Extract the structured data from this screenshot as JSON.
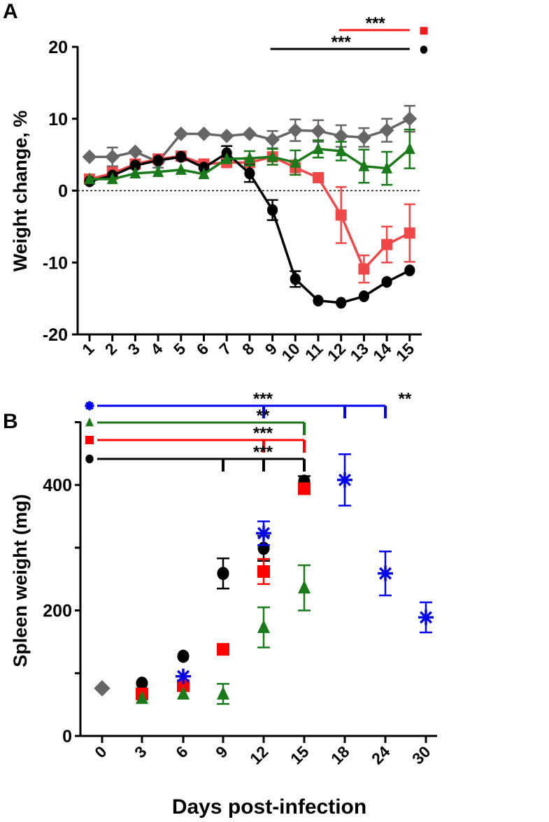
{
  "chart_data": [
    {
      "panel": "A",
      "type": "line",
      "ylabel": "Weight change, %",
      "xlabel": "",
      "categories": [
        "1",
        "2",
        "3",
        "4",
        "5",
        "6",
        "7",
        "8",
        "9",
        "10",
        "11",
        "12",
        "13",
        "14",
        "15"
      ],
      "ylim": [
        -20,
        20
      ],
      "yticks": [
        "20",
        "10",
        "0",
        "-10",
        "-20"
      ],
      "yticks_values": [
        20,
        10,
        0,
        -10,
        -20
      ],
      "reference_line": 0,
      "series": [
        {
          "name": "gray-diamond",
          "marker": "diamond",
          "color": "#666666",
          "values": [
            4.7,
            4.7,
            5.4,
            4.0,
            7.9,
            7.9,
            7.6,
            7.9,
            7.1,
            8.4,
            8.3,
            7.6,
            7.4,
            8.4,
            10.0
          ],
          "errors": [
            0,
            1.3,
            0,
            0.8,
            0,
            0,
            0,
            0,
            1.2,
            1.5,
            1.5,
            1.5,
            1.3,
            1.6,
            1.8
          ]
        },
        {
          "name": "red-square",
          "marker": "square",
          "color": "#ee3b3b",
          "values": [
            1.6,
            2.4,
            3.7,
            4.4,
            4.8,
            3.7,
            3.9,
            3.9,
            4.7,
            3.2,
            1.8,
            -3.4,
            -10.9,
            -7.5,
            -5.9
          ],
          "errors": [
            0,
            0.8,
            0,
            0,
            0,
            0,
            0,
            0,
            0,
            1.0,
            0,
            3.9,
            1.9,
            2.5,
            4.0
          ]
        },
        {
          "name": "black-circle",
          "marker": "circle",
          "color": "#000000",
          "values": [
            1.3,
            2.1,
            3.5,
            4.2,
            4.7,
            3.2,
            5.2,
            2.4,
            -2.7,
            -12.3,
            -15.3,
            -15.6,
            -14.7,
            -12.7,
            -11.1
          ],
          "errors": [
            0,
            0,
            0,
            0,
            0,
            0,
            1.0,
            1.2,
            1.4,
            1.1,
            0,
            0,
            0,
            0,
            0
          ]
        },
        {
          "name": "green-triangle",
          "marker": "triangle",
          "color": "#1a7a1a",
          "values": [
            1.6,
            1.6,
            2.4,
            2.6,
            2.9,
            2.3,
            4.4,
            4.5,
            4.7,
            3.9,
            5.8,
            5.5,
            3.4,
            3.1,
            5.8
          ],
          "errors": [
            0,
            0,
            0,
            0,
            0,
            0,
            0,
            1.0,
            1.1,
            1.7,
            1.2,
            1.3,
            2.3,
            2.3,
            2.7
          ]
        }
      ],
      "significance": [
        {
          "color": "#ee1c1c",
          "from": "12",
          "to": "15",
          "label": "***",
          "marker": "square"
        },
        {
          "color": "#000000",
          "from": "9",
          "to": "15",
          "label": "***",
          "marker": "circle"
        }
      ]
    },
    {
      "panel": "B",
      "type": "scatter",
      "ylabel": "Spleen weight (mg)",
      "xlabel": "Days post-infection",
      "categories": [
        "0",
        "3",
        "6",
        "9",
        "12",
        "15",
        "18",
        "24",
        "30"
      ],
      "ylim": [
        0,
        500
      ],
      "yticks": [
        "0",
        "200",
        "400"
      ],
      "yticks_values": [
        0,
        200,
        400
      ],
      "yminor_values": [
        100,
        300,
        500
      ],
      "series": [
        {
          "name": "gray-diamond",
          "marker": "diamond",
          "color": "#666666",
          "points": [
            {
              "x": "0",
              "y": 76,
              "err": 0
            }
          ]
        },
        {
          "name": "black-circle",
          "marker": "circle",
          "color": "#000000",
          "points": [
            {
              "x": "3",
              "y": 84,
              "err": 0
            },
            {
              "x": "6",
              "y": 127,
              "err": 0
            },
            {
              "x": "9",
              "y": 259,
              "err": 24
            },
            {
              "x": "12",
              "y": 299,
              "err": 20
            },
            {
              "x": "15",
              "y": 406,
              "err": 8
            }
          ]
        },
        {
          "name": "red-square",
          "marker": "square",
          "color": "#ff0000",
          "points": [
            {
              "x": "3",
              "y": 67,
              "err": 0
            },
            {
              "x": "6",
              "y": 80,
              "err": 0
            },
            {
              "x": "9",
              "y": 138,
              "err": 0
            },
            {
              "x": "12",
              "y": 262,
              "err": 20
            },
            {
              "x": "15",
              "y": 394,
              "err": 0
            }
          ]
        },
        {
          "name": "green-triangle",
          "marker": "triangle",
          "color": "#1a7a1a",
          "points": [
            {
              "x": "3",
              "y": 60,
              "err": 0
            },
            {
              "x": "6",
              "y": 67,
              "err": 0
            },
            {
              "x": "9",
              "y": 67,
              "err": 16
            },
            {
              "x": "12",
              "y": 173,
              "err": 32
            },
            {
              "x": "15",
              "y": 236,
              "err": 36
            }
          ]
        },
        {
          "name": "blue-asterisk",
          "marker": "asterisk",
          "color": "#0000ee",
          "points": [
            {
              "x": "6",
              "y": 95,
              "err": 0
            },
            {
              "x": "12",
              "y": 323,
              "err": 19
            },
            {
              "x": "18",
              "y": 408,
              "err": 41
            },
            {
              "x": "24",
              "y": 259,
              "err": 35
            },
            {
              "x": "30",
              "y": 189,
              "err": 24
            }
          ]
        }
      ],
      "significance": [
        {
          "color": "#0000ee",
          "marker": "asterisk",
          "to": [
            "12",
            "18",
            "24"
          ],
          "labels": [
            {
              "text": "***",
              "at": "9"
            },
            {
              "text": "**",
              "at": "21"
            }
          ]
        },
        {
          "color": "#1a7a1a",
          "marker": "triangle",
          "to": [
            "15"
          ],
          "labels": [
            {
              "text": "**",
              "at": "9"
            }
          ]
        },
        {
          "color": "#ff0000",
          "marker": "square",
          "to": [
            "12",
            "15"
          ],
          "labels": [
            {
              "text": "***",
              "at": "9"
            }
          ]
        },
        {
          "color": "#000000",
          "marker": "circle",
          "to": [
            "9",
            "12",
            "15"
          ],
          "labels": [
            {
              "text": "***",
              "at": "9"
            }
          ]
        }
      ]
    }
  ],
  "panel_labels": {
    "a": "A",
    "b": "B"
  }
}
